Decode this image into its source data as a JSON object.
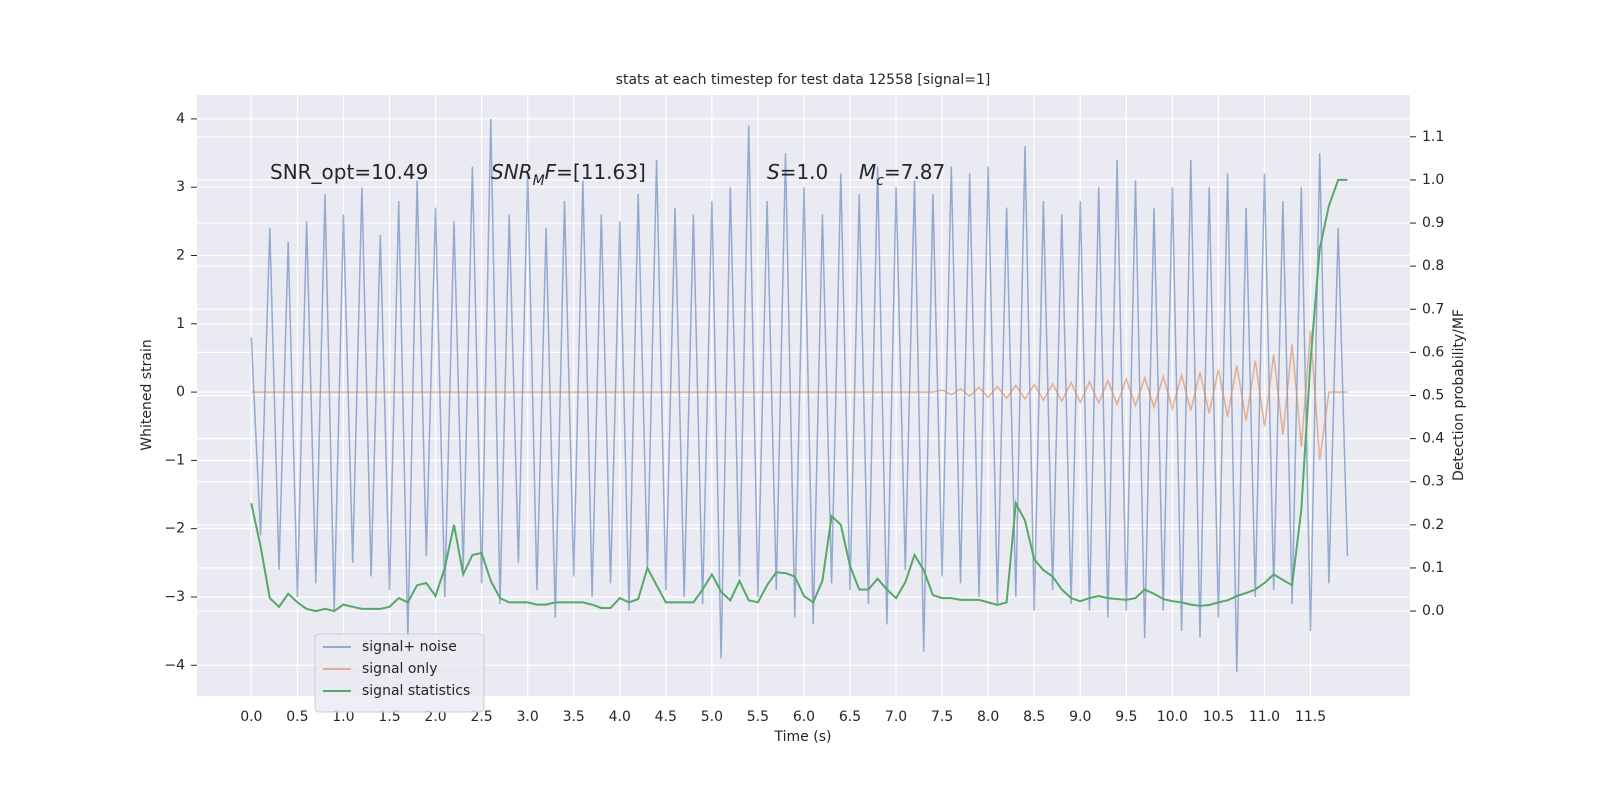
{
  "chart_data": {
    "type": "line",
    "title": "stats at each timestep for test data 12558 [signal=1]",
    "xlabel": "Time (s)",
    "ylabel": "Whitened strain",
    "y2label": "Detection probability/MF",
    "annotations": [
      [
        {
          "text": "SNR_opt=10.49"
        }
      ],
      [
        {
          "text": "SNR",
          "italic": true
        },
        {
          "text": "M",
          "italic": true,
          "sub": true
        },
        {
          "text": "F",
          "italic": true
        },
        {
          "text": "=[11.63]"
        }
      ],
      [
        {
          "text": "S",
          "italic": true
        },
        {
          "text": "=1.0"
        }
      ],
      [
        {
          "text": "M",
          "italic": true
        },
        {
          "text": "c",
          "italic": true,
          "sub": true
        },
        {
          "text": "=7.87"
        }
      ]
    ],
    "x": [
      0,
      0.1,
      0.2,
      0.3,
      0.4,
      0.5,
      0.6,
      0.7,
      0.8,
      0.9,
      1,
      1.1,
      1.2,
      1.3,
      1.4,
      1.5,
      1.6,
      1.7,
      1.8,
      1.9,
      2,
      2.1,
      2.2,
      2.3,
      2.4,
      2.5,
      2.6,
      2.7,
      2.8,
      2.9,
      3,
      3.1,
      3.2,
      3.3,
      3.4,
      3.5,
      3.6,
      3.7,
      3.8,
      3.9,
      4,
      4.1,
      4.2,
      4.3,
      4.4,
      4.5,
      4.6,
      4.7,
      4.8,
      4.9,
      5,
      5.1,
      5.2,
      5.3,
      5.4,
      5.5,
      5.6,
      5.7,
      5.8,
      5.9,
      6,
      6.1,
      6.2,
      6.3,
      6.4,
      6.5,
      6.6,
      6.7,
      6.8,
      6.9,
      7,
      7.1,
      7.2,
      7.3,
      7.4,
      7.5,
      7.6,
      7.7,
      7.8,
      7.9,
      8,
      8.1,
      8.2,
      8.3,
      8.4,
      8.5,
      8.6,
      8.7,
      8.8,
      8.9,
      9,
      9.1,
      9.2,
      9.3,
      9.4,
      9.5,
      9.6,
      9.7,
      9.8,
      9.9,
      10,
      10.1,
      10.2,
      10.3,
      10.4,
      10.5,
      10.6,
      10.7,
      10.8,
      10.9,
      11,
      11.1,
      11.2,
      11.3,
      11.4,
      11.5,
      11.6,
      11.7,
      11.8,
      11.9
    ],
    "series": [
      {
        "name": "signal+ noise",
        "color": "#4c72b0",
        "opacity": 0.55,
        "values": [
          0.8,
          -2.1,
          2.4,
          -2.6,
          2.2,
          -3.0,
          2.5,
          -2.8,
          2.9,
          -3.2,
          2.6,
          -2.5,
          3.0,
          -2.7,
          2.3,
          -2.9,
          2.8,
          -3.6,
          3.1,
          -2.4,
          2.7,
          -3.0,
          2.5,
          -2.6,
          3.3,
          -2.8,
          4.0,
          -3.1,
          2.6,
          -2.5,
          3.2,
          -2.9,
          2.4,
          -3.3,
          2.8,
          -2.7,
          3.1,
          -3.0,
          2.6,
          -2.8,
          2.5,
          -3.2,
          2.9,
          -2.6,
          3.4,
          -2.9,
          2.7,
          -3.0,
          2.6,
          -3.1,
          2.8,
          -3.9,
          3.0,
          -2.7,
          3.9,
          -3.0,
          2.8,
          -2.9,
          3.5,
          -3.3,
          3.0,
          -3.4,
          2.6,
          -2.8,
          3.2,
          -2.9,
          2.9,
          -3.1,
          3.3,
          -3.4,
          3.0,
          -2.6,
          3.1,
          -3.8,
          2.9,
          -2.7,
          3.3,
          -2.8,
          3.2,
          -3.0,
          3.3,
          -3.1,
          2.7,
          -3.0,
          3.6,
          -3.2,
          2.8,
          -2.9,
          2.6,
          -3.1,
          2.8,
          -3.2,
          3.0,
          -3.3,
          3.4,
          -3.2,
          3.1,
          -3.6,
          2.7,
          -3.2,
          3.0,
          -3.5,
          3.4,
          -3.6,
          3.0,
          -3.3,
          3.2,
          -4.1,
          2.7,
          -3.0,
          3.2,
          -2.9,
          2.8,
          -3.1,
          3.0,
          -3.5,
          3.5,
          -2.8,
          2.4,
          -2.4
        ]
      },
      {
        "name": "signal only",
        "color": "#dd8452",
        "opacity": 0.6,
        "values": [
          0,
          0,
          0,
          0,
          0,
          0,
          0,
          0,
          0,
          0,
          0,
          0,
          0,
          0,
          0,
          0,
          0,
          0,
          0,
          0,
          0,
          0,
          0,
          0,
          0,
          0,
          0,
          0,
          0,
          0,
          0,
          0,
          0,
          0,
          0,
          0,
          0,
          0,
          0,
          0,
          0,
          0,
          0,
          0,
          0,
          0,
          0,
          0,
          0,
          0,
          0,
          0,
          0,
          0,
          0,
          0,
          0,
          0,
          0,
          0,
          0,
          0,
          0,
          0,
          0,
          0,
          0,
          0,
          0,
          0,
          0,
          0,
          0,
          0,
          0,
          0.03,
          -0.04,
          0.05,
          -0.06,
          0.07,
          -0.08,
          0.08,
          -0.09,
          0.1,
          -0.1,
          0.11,
          -0.12,
          0.12,
          -0.13,
          0.14,
          -0.15,
          0.15,
          -0.16,
          0.17,
          -0.18,
          0.19,
          -0.2,
          0.21,
          -0.22,
          0.23,
          -0.24,
          0.25,
          -0.27,
          0.29,
          -0.31,
          0.33,
          -0.36,
          0.39,
          -0.42,
          0.46,
          -0.5,
          0.55,
          -0.62,
          0.7,
          -0.8,
          0.9,
          -1.0,
          0,
          0,
          0
        ]
      },
      {
        "name": "signal statistics",
        "color": "#55a868",
        "opacity": 1,
        "axis": "y2",
        "values": [
          0.25,
          0.15,
          0.03,
          0.01,
          0.04,
          0.02,
          0.005,
          0.0,
          0.005,
          0.0,
          0.015,
          0.01,
          0.005,
          0.005,
          0.005,
          0.01,
          0.03,
          0.02,
          0.06,
          0.065,
          0.035,
          0.1,
          0.2,
          0.085,
          0.13,
          0.135,
          0.07,
          0.03,
          0.02,
          0.02,
          0.02,
          0.015,
          0.015,
          0.02,
          0.02,
          0.02,
          0.02,
          0.015,
          0.007,
          0.007,
          0.03,
          0.02,
          0.028,
          0.1,
          0.06,
          0.02,
          0.02,
          0.02,
          0.02,
          0.05,
          0.085,
          0.045,
          0.025,
          0.07,
          0.025,
          0.02,
          0.06,
          0.09,
          0.088,
          0.08,
          0.035,
          0.02,
          0.07,
          0.22,
          0.2,
          0.105,
          0.05,
          0.05,
          0.075,
          0.05,
          0.03,
          0.067,
          0.13,
          0.095,
          0.037,
          0.03,
          0.03,
          0.026,
          0.026,
          0.026,
          0.02,
          0.014,
          0.02,
          0.25,
          0.21,
          0.12,
          0.095,
          0.08,
          0.05,
          0.03,
          0.023,
          0.03,
          0.035,
          0.03,
          0.028,
          0.026,
          0.03,
          0.05,
          0.04,
          0.028,
          0.023,
          0.02,
          0.015,
          0.012,
          0.014,
          0.02,
          0.025,
          0.035,
          0.042,
          0.05,
          0.065,
          0.085,
          0.072,
          0.06,
          0.235,
          0.58,
          0.84,
          0.94,
          1.0,
          1.0
        ]
      }
    ],
    "xlim": [
      -0.59,
      12.58
    ],
    "ylim": [
      -4.45,
      4.35
    ],
    "y2lim": [
      -0.197,
      1.197
    ],
    "xticks": [
      {
        "value": 0,
        "label": "0.0"
      },
      {
        "value": 0.5,
        "label": "0.5"
      },
      {
        "value": 1,
        "label": "1.0"
      },
      {
        "value": 1.5,
        "label": "1.5"
      },
      {
        "value": 2,
        "label": "2.0"
      },
      {
        "value": 2.5,
        "label": "2.5"
      },
      {
        "value": 3,
        "label": "3.0"
      },
      {
        "value": 3.5,
        "label": "3.5"
      },
      {
        "value": 4,
        "label": "4.0"
      },
      {
        "value": 4.5,
        "label": "4.5"
      },
      {
        "value": 5,
        "label": "5.0"
      },
      {
        "value": 5.5,
        "label": "5.5"
      },
      {
        "value": 6,
        "label": "6.0"
      },
      {
        "value": 6.5,
        "label": "6.5"
      },
      {
        "value": 7,
        "label": "7.0"
      },
      {
        "value": 7.5,
        "label": "7.5"
      },
      {
        "value": 8,
        "label": "8.0"
      },
      {
        "value": 8.5,
        "label": "8.5"
      },
      {
        "value": 9,
        "label": "9.0"
      },
      {
        "value": 9.5,
        "label": "9.5"
      },
      {
        "value": 10,
        "label": "10.0"
      },
      {
        "value": 10.5,
        "label": "10.5"
      },
      {
        "value": 11,
        "label": "11.0"
      },
      {
        "value": 11.5,
        "label": "11.5"
      }
    ],
    "yticks": [
      {
        "value": -4,
        "label": "−4"
      },
      {
        "value": -3,
        "label": "−3"
      },
      {
        "value": -2,
        "label": "−2"
      },
      {
        "value": -1,
        "label": "−1"
      },
      0,
      1,
      2,
      3,
      4
    ],
    "y2ticks": [
      {
        "value": 0,
        "label": "0.0"
      },
      {
        "value": 0.1,
        "label": "0.1"
      },
      {
        "value": 0.2,
        "label": "0.2"
      },
      {
        "value": 0.3,
        "label": "0.3"
      },
      {
        "value": 0.4,
        "label": "0.4"
      },
      {
        "value": 0.5,
        "label": "0.5"
      },
      {
        "value": 0.6,
        "label": "0.6"
      },
      {
        "value": 0.7,
        "label": "0.7"
      },
      {
        "value": 0.8,
        "label": "0.8"
      },
      {
        "value": 0.9,
        "label": "0.9"
      },
      {
        "value": 1,
        "label": "1.0"
      },
      {
        "value": 1.1,
        "label": "1.1"
      }
    ],
    "grid": true,
    "background": "#eaeaf2",
    "legend": "lower left"
  }
}
